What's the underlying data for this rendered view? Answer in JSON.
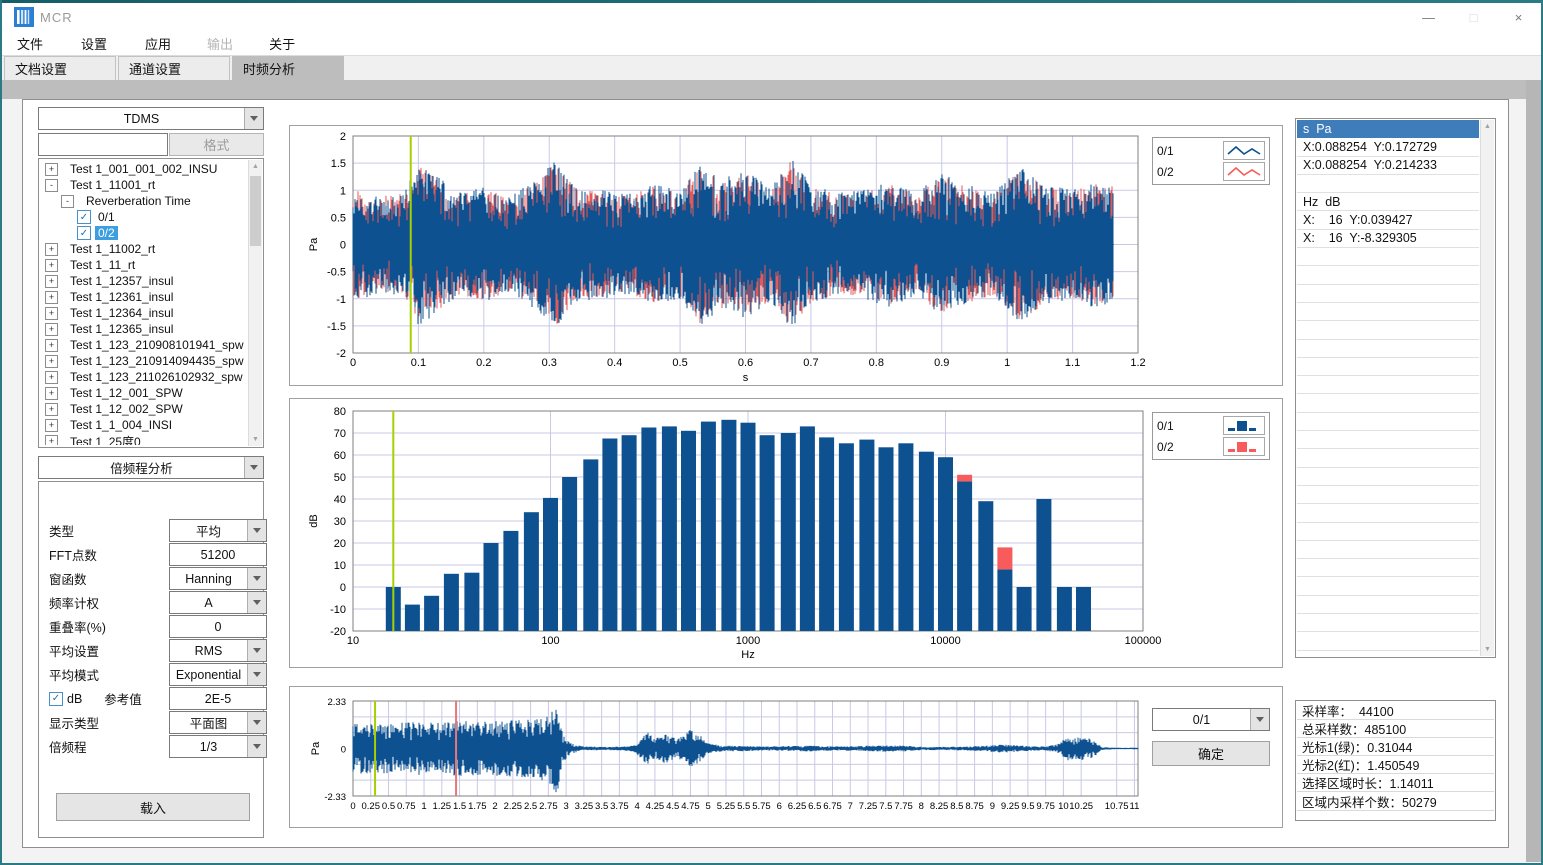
{
  "window": {
    "title": "MCR",
    "minimize": "—",
    "maximize": "□",
    "close": "×"
  },
  "menu": {
    "items": [
      {
        "label": "文件",
        "enabled": true
      },
      {
        "label": "设置",
        "enabled": true
      },
      {
        "label": "应用",
        "enabled": true
      },
      {
        "label": "输出",
        "enabled": false
      },
      {
        "label": "关于",
        "enabled": true
      }
    ]
  },
  "tabs": [
    {
      "label": "文档设置",
      "active": false
    },
    {
      "label": "通道设置",
      "active": false
    },
    {
      "label": "时频分析",
      "active": true
    }
  ],
  "left_panel": {
    "format_select": {
      "value": "TDMS"
    },
    "filter_input": {
      "value": ""
    },
    "format_button": {
      "label": "格式",
      "enabled": false
    },
    "tree": {
      "items": [
        {
          "label": "Test 1_001_001_002_INSU",
          "level": 0,
          "expander": "plus"
        },
        {
          "label": "Test 1_11001_rt",
          "level": 0,
          "expander": "minus"
        },
        {
          "label": "Reverberation Time",
          "level": 1,
          "expander": "minus"
        },
        {
          "label": "0/1",
          "level": 2,
          "checkbox": true,
          "checked": true
        },
        {
          "label": "0/2",
          "level": 2,
          "checkbox": true,
          "checked": true,
          "selected": true
        },
        {
          "label": "Test 1_11002_rt",
          "level": 0,
          "expander": "plus"
        },
        {
          "label": "Test 1_11_rt",
          "level": 0,
          "expander": "plus"
        },
        {
          "label": "Test 1_12357_insul",
          "level": 0,
          "expander": "plus"
        },
        {
          "label": "Test 1_12361_insul",
          "level": 0,
          "expander": "plus"
        },
        {
          "label": "Test 1_12364_insul",
          "level": 0,
          "expander": "plus"
        },
        {
          "label": "Test 1_12365_insul",
          "level": 0,
          "expander": "plus"
        },
        {
          "label": "Test 1_123_210908101941_spw",
          "level": 0,
          "expander": "plus"
        },
        {
          "label": "Test 1_123_210914094435_spw",
          "level": 0,
          "expander": "plus"
        },
        {
          "label": "Test 1_123_211026102932_spw",
          "level": 0,
          "expander": "plus"
        },
        {
          "label": "Test 1_12_001_SPW",
          "level": 0,
          "expander": "plus"
        },
        {
          "label": "Test 1_12_002_SPW",
          "level": 0,
          "expander": "plus"
        },
        {
          "label": "Test 1_1_004_INSI",
          "level": 0,
          "expander": "plus"
        },
        {
          "label": "Test 1_25度0",
          "level": 0,
          "expander": "plus"
        }
      ]
    },
    "analysis_select": {
      "value": "倍频程分析"
    },
    "form": {
      "rows": [
        {
          "label": "类型",
          "type": "select",
          "value": "平均"
        },
        {
          "label": "FFT点数",
          "type": "input",
          "value": "51200"
        },
        {
          "label": "窗函数",
          "type": "select",
          "value": "Hanning"
        },
        {
          "label": "频率计权",
          "type": "select",
          "value": "A"
        },
        {
          "label": "重叠率(%)",
          "type": "input",
          "value": "0"
        },
        {
          "label": "平均设置",
          "type": "select",
          "value": "RMS"
        },
        {
          "label": "平均模式",
          "type": "select",
          "value": "Exponential"
        },
        {
          "label": "参考值",
          "type": "input",
          "value": "2E-5",
          "checkbox": {
            "label": "dB",
            "checked": true
          }
        },
        {
          "label": "显示类型",
          "type": "select",
          "value": "平面图"
        },
        {
          "label": "倍频程",
          "type": "select",
          "value": "1/3"
        }
      ],
      "load_button": "载入"
    }
  },
  "readout_panel": {
    "selected_index": 0,
    "rows": [
      "s  Pa",
      "X:0.088254  Y:0.172729",
      "X:0.088254  Y:0.214233",
      "",
      "Hz  dB",
      "X:    16  Y:0.039427",
      "X:    16  Y:-8.329305"
    ]
  },
  "stats_panel": {
    "rows": [
      "采样率：  44100",
      "总采样数：485100",
      "光标1(绿)：0.31044",
      "光标2(红)：1.450549",
      "选择区域时长：1.14011",
      "区域内采样个数：50279"
    ]
  },
  "bottom_controls": {
    "channel_select": "0/1",
    "confirm_button": "确定"
  },
  "colors": {
    "series_blue": "#0e5191",
    "series_red": "#f85b5b",
    "cursor_green": "#a6d000",
    "cursor_red": "#e87878",
    "grid": "#c9c9e6",
    "selection_blue": "#3f7cba",
    "tree_selection": "#3d9ee0"
  },
  "chart_data": [
    {
      "id": "time-waveform",
      "type": "line",
      "subtype": "noise-waveform",
      "xlabel": "s",
      "ylabel": "Pa",
      "xlim": [
        0,
        1.2
      ],
      "ylim": [
        -2,
        2
      ],
      "xticks": [
        0,
        0.1,
        0.2,
        0.3,
        0.4,
        0.5,
        0.6,
        0.7,
        0.8,
        0.9,
        1,
        1.1,
        1.2
      ],
      "yticks": [
        -2,
        -1.5,
        -1,
        -0.5,
        0,
        0.5,
        1,
        1.5,
        2
      ],
      "data_end": 1.163,
      "cursors": [
        {
          "x": 0.088254,
          "color": "#a6d000"
        }
      ],
      "legend": [
        {
          "label": "0/1",
          "glyph": "line",
          "color": "#0e5191"
        },
        {
          "label": "0/2",
          "glyph": "line",
          "color": "#f85b5b"
        }
      ],
      "series": [
        {
          "name": "0/2",
          "color": "#e05a5a",
          "seed": 77,
          "scale": 0.97
        },
        {
          "name": "0/1",
          "color": "#0e5191",
          "seed": 12,
          "scale": 1.0
        }
      ],
      "envelope": [
        [
          0,
          1.05
        ],
        [
          0.04,
          0.9
        ],
        [
          0.08,
          1.0
        ],
        [
          0.1,
          1.5
        ],
        [
          0.13,
          1.25
        ],
        [
          0.16,
          0.95
        ],
        [
          0.2,
          1.05
        ],
        [
          0.24,
          0.9
        ],
        [
          0.28,
          1.2
        ],
        [
          0.31,
          1.55
        ],
        [
          0.34,
          1.05
        ],
        [
          0.38,
          1.0
        ],
        [
          0.42,
          0.92
        ],
        [
          0.46,
          1.1
        ],
        [
          0.5,
          1.0
        ],
        [
          0.53,
          1.5
        ],
        [
          0.56,
          1.2
        ],
        [
          0.6,
          1.35
        ],
        [
          0.64,
          1.05
        ],
        [
          0.67,
          1.6
        ],
        [
          0.7,
          1.1
        ],
        [
          0.74,
          0.95
        ],
        [
          0.78,
          1.0
        ],
        [
          0.82,
          1.15
        ],
        [
          0.86,
          0.95
        ],
        [
          0.9,
          1.3
        ],
        [
          0.94,
          1.1
        ],
        [
          0.98,
          0.95
        ],
        [
          1.02,
          1.45
        ],
        [
          1.06,
          1.1
        ],
        [
          1.1,
          1.0
        ],
        [
          1.13,
          1.15
        ],
        [
          1.163,
          1.1
        ]
      ]
    },
    {
      "id": "octave-spectrum",
      "type": "bar",
      "xscale": "log",
      "xlabel": "Hz",
      "ylabel": "dB",
      "xlim": [
        10,
        100000
      ],
      "ylim": [
        -20,
        80
      ],
      "xticks": [
        10,
        100,
        1000,
        10000,
        100000
      ],
      "yticks": [
        -20,
        -10,
        0,
        10,
        20,
        30,
        40,
        50,
        60,
        70,
        80
      ],
      "cursors": [
        {
          "x": 16,
          "color": "#a6d000"
        }
      ],
      "legend": [
        {
          "label": "0/1",
          "glyph": "bar",
          "color": "#0e5191"
        },
        {
          "label": "0/2",
          "glyph": "bar",
          "color": "#f85b5b"
        }
      ],
      "categories": [
        16,
        20,
        25,
        31.5,
        40,
        50,
        63,
        80,
        100,
        125,
        160,
        200,
        250,
        315,
        400,
        500,
        630,
        800,
        1000,
        1250,
        1600,
        2000,
        2500,
        3150,
        4000,
        5000,
        6300,
        8000,
        10000,
        12500,
        16000,
        20000,
        25000,
        31500,
        40000,
        50000
      ],
      "series": [
        {
          "name": "0/1",
          "color": "#0e5191",
          "values": [
            0,
            -8,
            -4,
            6,
            6.5,
            20,
            25.5,
            34,
            40.5,
            50,
            58,
            67.5,
            69,
            72.5,
            73,
            71,
            75.2,
            76,
            74.7,
            69,
            70,
            73,
            68,
            65.3,
            67,
            63.5,
            65.3,
            61.5,
            59,
            48,
            39,
            8,
            0,
            40,
            0,
            0
          ]
        },
        {
          "name": "0/2",
          "color": "#f85b5b",
          "values": [
            null,
            null,
            null,
            null,
            null,
            null,
            null,
            null,
            null,
            null,
            null,
            null,
            null,
            null,
            null,
            null,
            null,
            null,
            null,
            null,
            null,
            null,
            null,
            null,
            null,
            null,
            null,
            null,
            null,
            51,
            null,
            18,
            null,
            null,
            null,
            null
          ],
          "note": "mostly hidden behind series 0/1; visible only at 12500 Hz and 20000 Hz"
        }
      ]
    },
    {
      "id": "overview-waveform",
      "type": "line",
      "subtype": "noise-waveform",
      "xlabel": "",
      "ylabel": "Pa",
      "xlim": [
        0,
        11.05
      ],
      "ylim": [
        -2.33,
        2.33
      ],
      "xticks": [
        0,
        0.25,
        0.5,
        0.75,
        1,
        1.25,
        1.5,
        1.75,
        2,
        2.25,
        2.5,
        2.75,
        3,
        3.25,
        3.5,
        3.75,
        4,
        4.25,
        4.5,
        4.75,
        5,
        5.25,
        5.5,
        5.75,
        6,
        6.25,
        6.5,
        6.75,
        7,
        7.25,
        7.5,
        7.75,
        8,
        8.25,
        8.5,
        8.75,
        9,
        9.25,
        9.5,
        9.75,
        10,
        10.25,
        10.75,
        11
      ],
      "yticks": [
        -2.33,
        0,
        2.33
      ],
      "hgrid": [
        -1.553,
        -0.777,
        0,
        0.777,
        1.553
      ],
      "data_end": 11.05,
      "cursors": [
        {
          "x": 0.31044,
          "color": "#a6d000"
        },
        {
          "x": 1.450549,
          "color": "#e87878"
        }
      ],
      "series": [
        {
          "name": "0/1",
          "color": "#0e5191",
          "seed": 5,
          "scale": 1.0
        }
      ],
      "envelope": [
        [
          0,
          1.25
        ],
        [
          0.3,
          1.2
        ],
        [
          0.6,
          1.25
        ],
        [
          0.9,
          1.3
        ],
        [
          1.2,
          1.25
        ],
        [
          1.5,
          1.35
        ],
        [
          1.8,
          1.3
        ],
        [
          2.1,
          1.35
        ],
        [
          2.4,
          1.4
        ],
        [
          2.6,
          1.45
        ],
        [
          2.8,
          1.8
        ],
        [
          2.87,
          2.3
        ],
        [
          2.95,
          0.7
        ],
        [
          3.05,
          0.3
        ],
        [
          3.2,
          0.12
        ],
        [
          3.5,
          0.08
        ],
        [
          3.8,
          0.1
        ],
        [
          3.95,
          0.15
        ],
        [
          4.05,
          0.5
        ],
        [
          4.15,
          0.8
        ],
        [
          4.25,
          0.45
        ],
        [
          4.4,
          0.75
        ],
        [
          4.55,
          0.5
        ],
        [
          4.65,
          0.6
        ],
        [
          4.75,
          0.95
        ],
        [
          4.9,
          0.6
        ],
        [
          5.0,
          0.25
        ],
        [
          5.2,
          0.15
        ],
        [
          5.5,
          0.13
        ],
        [
          5.8,
          0.1
        ],
        [
          6.1,
          0.12
        ],
        [
          6.4,
          0.15
        ],
        [
          6.6,
          0.13
        ],
        [
          6.9,
          0.1
        ],
        [
          7.2,
          0.13
        ],
        [
          7.5,
          0.16
        ],
        [
          7.8,
          0.14
        ],
        [
          8.0,
          0.08
        ],
        [
          8.3,
          0.08
        ],
        [
          8.6,
          0.1
        ],
        [
          8.9,
          0.13
        ],
        [
          9.1,
          0.2
        ],
        [
          9.3,
          0.18
        ],
        [
          9.5,
          0.12
        ],
        [
          9.75,
          0.1
        ],
        [
          9.95,
          0.25
        ],
        [
          10.05,
          0.6
        ],
        [
          10.15,
          0.5
        ],
        [
          10.25,
          0.6
        ],
        [
          10.35,
          0.55
        ],
        [
          10.45,
          0.35
        ],
        [
          10.55,
          0.08
        ],
        [
          10.7,
          0.04
        ],
        [
          11.05,
          0.04
        ]
      ]
    }
  ]
}
